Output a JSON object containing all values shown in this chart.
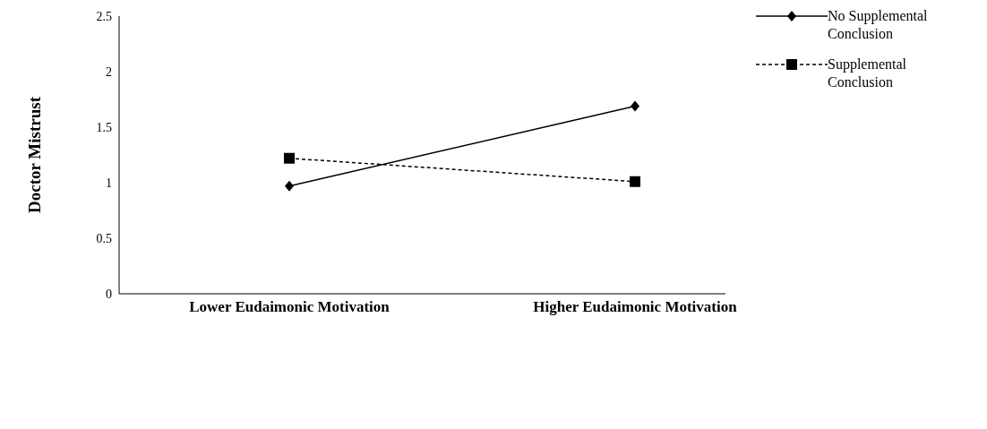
{
  "chart_data": {
    "type": "line",
    "ylabel": "Doctor Mistrust",
    "categories": [
      "Lower Eudaimonic Motivation",
      "Higher Eudaimonic Motivation"
    ],
    "series": [
      {
        "name": "No Supplemental Conclusion",
        "color": "#000000",
        "values": [
          0.97,
          1.69
        ],
        "marker": "diamond",
        "line_style": "solid"
      },
      {
        "name": "Supplemental Conclusion",
        "color": "#000000",
        "values": [
          1.22,
          1.01
        ],
        "marker": "square",
        "line_style": "dashed"
      }
    ],
    "ylim": [
      0,
      2.5
    ],
    "yticks": [
      0,
      0.5,
      1,
      1.5,
      2,
      2.5
    ],
    "grid": false,
    "legend": "top right"
  }
}
